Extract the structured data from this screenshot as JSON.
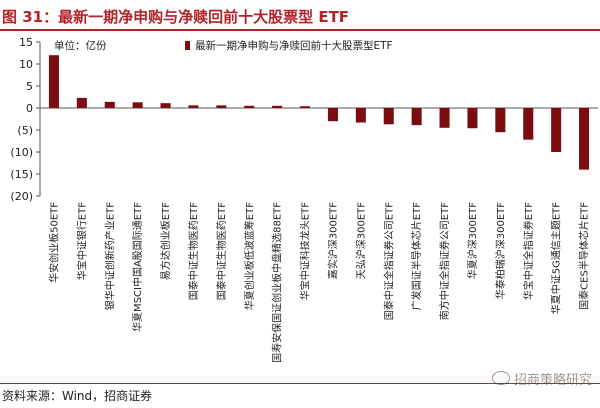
{
  "header": {
    "title": "图 31：最新一期净申购与净赎回前十大股票型 ETF"
  },
  "footer": {
    "source": "资料来源：Wind，招商证券",
    "watermark": "招商策略研究"
  },
  "chart_data": {
    "type": "bar",
    "unit_label": "单位：亿份",
    "legend": "最新一期净申购与净赎回前十大股票型ETF",
    "legend_position": "top",
    "bar_color": "#7b0c10",
    "ylim": [
      -20,
      15
    ],
    "yticks": [
      15,
      10,
      5,
      0,
      -5,
      -10,
      -15,
      -20
    ],
    "ytick_labels": [
      "15",
      "10",
      "5",
      "0",
      "(5)",
      "(10)",
      "(15)",
      "(20)"
    ],
    "grid": false,
    "categories": [
      "华安创业板50ETF",
      "华宝中证银行ETF",
      "银华中证创新药产业ETF",
      "华夏MSCI中国A股国际通ETF",
      "易方达创业板ETF",
      "国泰中证生物医药ETF",
      "国泰中证生物医药ETF",
      "华夏创业板低波蓝筹ETF",
      "国寿安保国证创业板中盘精选88ETF",
      "华宝中证科技龙头ETF",
      "嘉实沪深300ETF",
      "天弘沪深300ETF",
      "国泰中证全指证券公司ETF",
      "广发国证半导体芯片ETF",
      "南方中证全指证券公司ETF",
      "华夏沪深300ETF",
      "华泰柏瑞沪深300ETF",
      "华宝中证全指证券ETF",
      "华夏中证5G通信主题ETF",
      "国泰CES半导体芯片ETF"
    ],
    "series": [
      {
        "values": [
          12.0,
          2.3,
          1.4,
          1.3,
          1.1,
          0.6,
          0.6,
          0.5,
          0.5,
          0.4,
          -3.0,
          -3.3,
          -3.7,
          -3.9,
          -4.5,
          -4.6,
          -5.5,
          -7.2,
          -10.0,
          -14.0
        ]
      }
    ]
  }
}
